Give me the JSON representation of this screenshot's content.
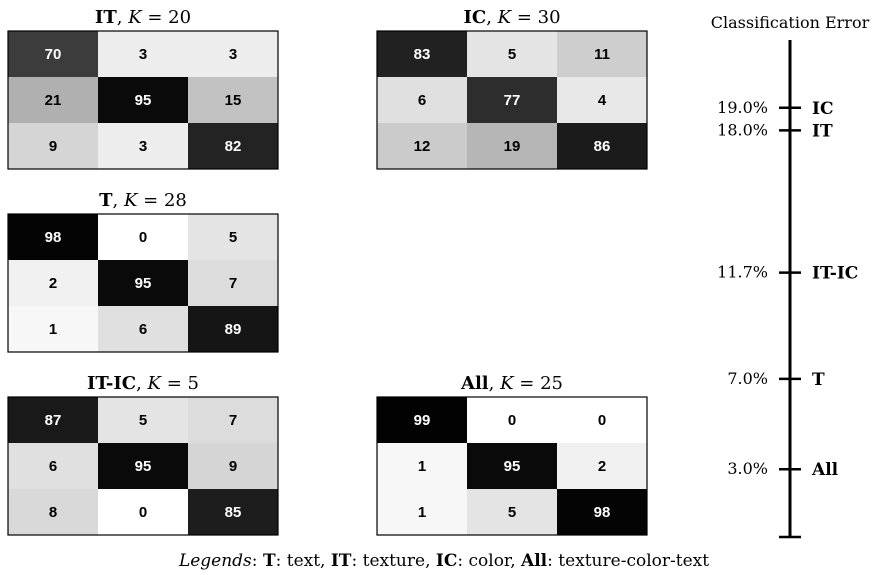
{
  "chart_data": {
    "type": "heatmap",
    "matrices": [
      {
        "name": "IT",
        "k_label": "K",
        "k_eq": " = ",
        "k_value": "20",
        "rows": [
          [
            70,
            3,
            3
          ],
          [
            21,
            95,
            15
          ],
          [
            9,
            3,
            82
          ]
        ]
      },
      {
        "name": "IC",
        "k_label": "K",
        "k_eq": " = ",
        "k_value": "30",
        "rows": [
          [
            83,
            5,
            11
          ],
          [
            6,
            77,
            4
          ],
          [
            12,
            19,
            86
          ]
        ]
      },
      {
        "name": "T",
        "k_label": "K",
        "k_eq": " = ",
        "k_value": "28",
        "rows": [
          [
            98,
            0,
            5
          ],
          [
            2,
            95,
            7
          ],
          [
            1,
            6,
            89
          ]
        ]
      },
      {
        "name": "IT-IC",
        "k_label": "K",
        "k_eq": " = ",
        "k_value": "5",
        "rows": [
          [
            87,
            5,
            7
          ],
          [
            6,
            95,
            9
          ],
          [
            8,
            0,
            85
          ]
        ]
      },
      {
        "name": "All",
        "k_label": "K",
        "k_eq": " = ",
        "k_value": "25",
        "rows": [
          [
            99,
            0,
            0
          ],
          [
            1,
            95,
            2
          ],
          [
            1,
            5,
            98
          ]
        ]
      }
    ],
    "value_range": [
      0,
      100
    ],
    "colormap": "white-to-black",
    "error_scale": {
      "title": "Classification Error",
      "range": [
        0,
        22
      ],
      "entries": [
        {
          "value": 19.0,
          "label": "19.0%",
          "name": "IC"
        },
        {
          "value": 18.0,
          "label": "18.0%",
          "name": "IT"
        },
        {
          "value": 11.7,
          "label": "11.7%",
          "name": "IT-IC"
        },
        {
          "value": 7.0,
          "label": "7.0%",
          "name": "T"
        },
        {
          "value": 3.0,
          "label": "3.0%",
          "name": "All"
        }
      ]
    }
  },
  "legend": {
    "prefix": "Legends",
    "colon": ": ",
    "items": [
      {
        "key": "T",
        "desc": "text"
      },
      {
        "key": "IT",
        "desc": "texture"
      },
      {
        "key": "IC",
        "desc": "color"
      },
      {
        "key": "All",
        "desc": "texture-color-text"
      }
    ]
  }
}
